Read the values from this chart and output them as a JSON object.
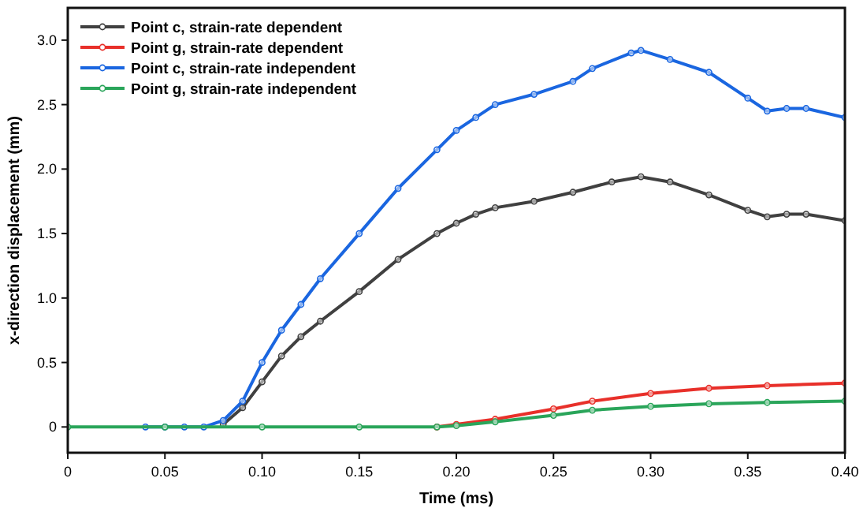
{
  "chart_data": {
    "type": "line",
    "xlabel": "Time (ms)",
    "ylabel": "x-direction displacement (mm)",
    "xlim": [
      0,
      0.4
    ],
    "ylim": [
      -0.2,
      3.25
    ],
    "xticks": [
      {
        "value": 0,
        "label": "0"
      },
      {
        "value": 0.05,
        "label": "0.05"
      },
      {
        "value": 0.1,
        "label": "0.10"
      },
      {
        "value": 0.15,
        "label": "0.15"
      },
      {
        "value": 0.2,
        "label": "0.20"
      },
      {
        "value": 0.25,
        "label": "0.25"
      },
      {
        "value": 0.3,
        "label": "0.30"
      },
      {
        "value": 0.35,
        "label": "0.35"
      },
      {
        "value": 0.4,
        "label": "0.40"
      }
    ],
    "yticks": [
      {
        "value": 0,
        "label": "0"
      },
      {
        "value": 0.5,
        "label": "0.5"
      },
      {
        "value": 1,
        "label": "1.0"
      },
      {
        "value": 1.5,
        "label": "1.5"
      },
      {
        "value": 2,
        "label": "2.0"
      },
      {
        "value": 2.5,
        "label": "2.5"
      },
      {
        "value": 3,
        "label": "3.0"
      }
    ],
    "grid": false,
    "legend": "top left",
    "marker": "circle",
    "line_style": "solid",
    "series": [
      {
        "name": "Point c, strain-rate dependent",
        "color": "#404040",
        "x": [
          0.08,
          0.09,
          0.1,
          0.11,
          0.12,
          0.13,
          0.15,
          0.17,
          0.19,
          0.2,
          0.21,
          0.22,
          0.24,
          0.26,
          0.28,
          0.295,
          0.31,
          0.33,
          0.35,
          0.36,
          0.37,
          0.38,
          0.4
        ],
        "values": [
          0.02,
          0.15,
          0.35,
          0.55,
          0.7,
          0.82,
          1.05,
          1.3,
          1.5,
          1.58,
          1.65,
          1.7,
          1.75,
          1.82,
          1.9,
          1.94,
          1.9,
          1.8,
          1.68,
          1.63,
          1.65,
          1.65,
          1.6
        ]
      },
      {
        "name": "Point g, strain-rate dependent",
        "color": "#e8302a",
        "x": [
          0.19,
          0.2,
          0.22,
          0.25,
          0.27,
          0.3,
          0.33,
          0.36,
          0.4
        ],
        "values": [
          0,
          0.02,
          0.06,
          0.14,
          0.2,
          0.26,
          0.3,
          0.32,
          0.34
        ]
      },
      {
        "name": "Point c, strain-rate independent",
        "color": "#1a66e0",
        "x": [
          0.04,
          0.05,
          0.06,
          0.07,
          0.08,
          0.09,
          0.1,
          0.11,
          0.12,
          0.13,
          0.15,
          0.17,
          0.19,
          0.2,
          0.21,
          0.22,
          0.24,
          0.26,
          0.27,
          0.29,
          0.295,
          0.31,
          0.33,
          0.35,
          0.36,
          0.37,
          0.38,
          0.4
        ],
        "values": [
          0,
          0,
          0,
          0,
          0.05,
          0.2,
          0.5,
          0.75,
          0.95,
          1.15,
          1.5,
          1.85,
          2.15,
          2.3,
          2.4,
          2.5,
          2.58,
          2.68,
          2.78,
          2.9,
          2.92,
          2.85,
          2.75,
          2.55,
          2.45,
          2.47,
          2.47,
          2.4
        ]
      },
      {
        "name": "Point g, strain-rate independent",
        "color": "#2aa55a",
        "x": [
          0,
          0.05,
          0.1,
          0.15,
          0.19,
          0.2,
          0.22,
          0.25,
          0.27,
          0.3,
          0.33,
          0.36,
          0.4
        ],
        "values": [
          0,
          0,
          0,
          0,
          0,
          0.01,
          0.04,
          0.09,
          0.13,
          0.16,
          0.18,
          0.19,
          0.2
        ]
      }
    ]
  }
}
